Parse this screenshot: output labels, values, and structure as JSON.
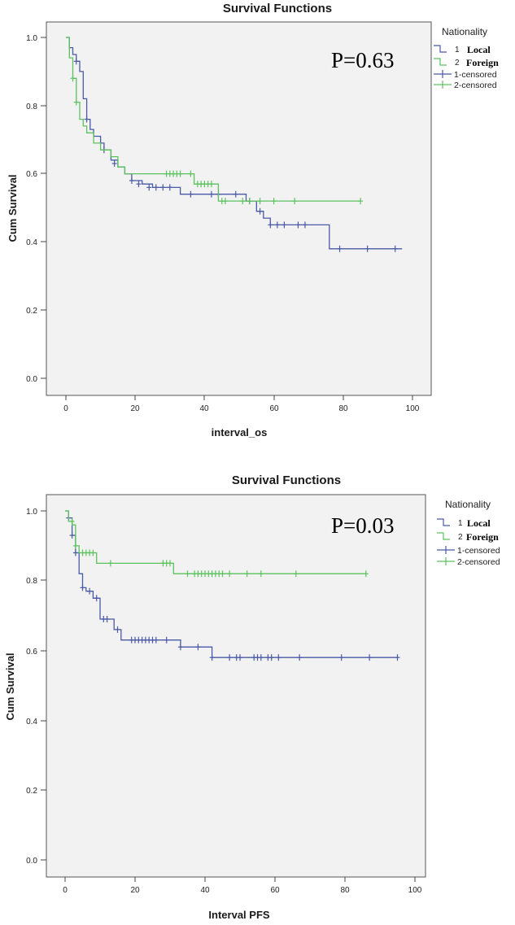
{
  "chart_data": [
    {
      "type": "line",
      "subtype": "kaplan-meier",
      "title": "Survival Functions",
      "xlabel": "interval_os",
      "ylabel": "Cum Survival",
      "xlim": [
        0,
        100
      ],
      "ylim": [
        0,
        1.0
      ],
      "xticks": [
        0,
        20,
        40,
        60,
        80,
        100
      ],
      "yticks": [
        "0.0",
        "0.2",
        "0.4",
        "0.6",
        "0.8",
        "1.0"
      ],
      "p_value_text": "P=0.63",
      "legend": {
        "title": "Nationality",
        "entries": [
          {
            "num": "1",
            "label": "Local"
          },
          {
            "num": "2",
            "label": "Foreign"
          },
          {
            "label": "1-censored"
          },
          {
            "label": "2-censored"
          }
        ]
      },
      "colors": {
        "local": "#4a5aa6",
        "foreign": "#5cc25e"
      },
      "series": [
        {
          "name": "Local",
          "steps": [
            [
              0,
              1.0
            ],
            [
              1,
              0.97
            ],
            [
              2,
              0.95
            ],
            [
              3,
              0.93
            ],
            [
              4,
              0.9
            ],
            [
              5,
              0.82
            ],
            [
              6,
              0.76
            ],
            [
              7,
              0.73
            ],
            [
              8,
              0.71
            ],
            [
              10,
              0.69
            ],
            [
              11,
              0.67
            ],
            [
              13,
              0.64
            ],
            [
              15,
              0.62
            ],
            [
              17,
              0.6
            ],
            [
              19,
              0.58
            ],
            [
              22,
              0.57
            ],
            [
              25,
              0.56
            ],
            [
              33,
              0.54
            ],
            [
              45,
              0.54
            ],
            [
              52,
              0.52
            ],
            [
              55,
              0.49
            ],
            [
              57,
              0.47
            ],
            [
              59,
              0.45
            ],
            [
              66,
              0.45
            ],
            [
              76,
              0.38
            ],
            [
              97,
              0.38
            ]
          ],
          "censored": [
            [
              3,
              0.93
            ],
            [
              6,
              0.76
            ],
            [
              11,
              0.67
            ],
            [
              14,
              0.63
            ],
            [
              19,
              0.58
            ],
            [
              21,
              0.57
            ],
            [
              24,
              0.56
            ],
            [
              26,
              0.56
            ],
            [
              28,
              0.56
            ],
            [
              30,
              0.56
            ],
            [
              36,
              0.54
            ],
            [
              42,
              0.54
            ],
            [
              44,
              0.54
            ],
            [
              49,
              0.54
            ],
            [
              53,
              0.52
            ],
            [
              56,
              0.49
            ],
            [
              59,
              0.45
            ],
            [
              61,
              0.45
            ],
            [
              63,
              0.45
            ],
            [
              67,
              0.45
            ],
            [
              69,
              0.45
            ],
            [
              79,
              0.38
            ],
            [
              87,
              0.38
            ],
            [
              95,
              0.38
            ]
          ]
        },
        {
          "name": "Foreign",
          "steps": [
            [
              0,
              1.0
            ],
            [
              1,
              0.94
            ],
            [
              2,
              0.88
            ],
            [
              3,
              0.81
            ],
            [
              4,
              0.76
            ],
            [
              5,
              0.74
            ],
            [
              6,
              0.72
            ],
            [
              8,
              0.69
            ],
            [
              10,
              0.67
            ],
            [
              13,
              0.65
            ],
            [
              15,
              0.62
            ],
            [
              17,
              0.6
            ],
            [
              36,
              0.6
            ],
            [
              37,
              0.57
            ],
            [
              42,
              0.57
            ],
            [
              44,
              0.52
            ],
            [
              85,
              0.52
            ]
          ],
          "censored": [
            [
              2,
              0.88
            ],
            [
              3,
              0.81
            ],
            [
              29,
              0.6
            ],
            [
              30,
              0.6
            ],
            [
              31,
              0.6
            ],
            [
              32,
              0.6
            ],
            [
              33,
              0.6
            ],
            [
              36,
              0.6
            ],
            [
              38,
              0.57
            ],
            [
              39,
              0.57
            ],
            [
              40,
              0.57
            ],
            [
              41,
              0.57
            ],
            [
              42,
              0.57
            ],
            [
              45,
              0.52
            ],
            [
              46,
              0.52
            ],
            [
              51,
              0.52
            ],
            [
              53,
              0.52
            ],
            [
              56,
              0.52
            ],
            [
              60,
              0.52
            ],
            [
              66,
              0.52
            ],
            [
              85,
              0.52
            ]
          ]
        }
      ]
    },
    {
      "type": "line",
      "subtype": "kaplan-meier",
      "title": "Survival Functions",
      "xlabel": "Interval PFS",
      "ylabel": "Cum Survival",
      "xlim": [
        0,
        100
      ],
      "ylim": [
        0,
        1.0
      ],
      "xticks": [
        0,
        20,
        40,
        60,
        80,
        100
      ],
      "yticks": [
        "0.0",
        "0.2",
        "0.4",
        "0.6",
        "0.8",
        "1.0"
      ],
      "p_value_text": "P=0.03",
      "legend": {
        "title": "Nationality",
        "entries": [
          {
            "num": "1",
            "label": "Local"
          },
          {
            "num": "2",
            "label": "Foreign"
          },
          {
            "label": "1-censored"
          },
          {
            "label": "2-censored"
          }
        ]
      },
      "colors": {
        "local": "#4a5aa6",
        "foreign": "#5cc25e"
      },
      "series": [
        {
          "name": "Local",
          "steps": [
            [
              0,
              1.0
            ],
            [
              1,
              0.98
            ],
            [
              2,
              0.93
            ],
            [
              3,
              0.88
            ],
            [
              4,
              0.82
            ],
            [
              5,
              0.78
            ],
            [
              6,
              0.77
            ],
            [
              8,
              0.75
            ],
            [
              10,
              0.69
            ],
            [
              14,
              0.66
            ],
            [
              16,
              0.63
            ],
            [
              33,
              0.61
            ],
            [
              42,
              0.58
            ],
            [
              95,
              0.58
            ]
          ],
          "censored": [
            [
              1,
              0.98
            ],
            [
              2,
              0.93
            ],
            [
              3,
              0.88
            ],
            [
              5,
              0.78
            ],
            [
              7,
              0.77
            ],
            [
              9,
              0.75
            ],
            [
              11,
              0.69
            ],
            [
              12,
              0.69
            ],
            [
              15,
              0.66
            ],
            [
              19,
              0.63
            ],
            [
              20,
              0.63
            ],
            [
              21,
              0.63
            ],
            [
              22,
              0.63
            ],
            [
              23,
              0.63
            ],
            [
              24,
              0.63
            ],
            [
              25,
              0.63
            ],
            [
              26,
              0.63
            ],
            [
              29,
              0.63
            ],
            [
              33,
              0.61
            ],
            [
              38,
              0.61
            ],
            [
              42,
              0.58
            ],
            [
              47,
              0.58
            ],
            [
              49,
              0.58
            ],
            [
              50,
              0.58
            ],
            [
              54,
              0.58
            ],
            [
              55,
              0.58
            ],
            [
              56,
              0.58
            ],
            [
              58,
              0.58
            ],
            [
              59,
              0.58
            ],
            [
              61,
              0.58
            ],
            [
              67,
              0.58
            ],
            [
              79,
              0.58
            ],
            [
              87,
              0.58
            ],
            [
              95,
              0.58
            ]
          ]
        },
        {
          "name": "Foreign",
          "steps": [
            [
              0,
              1.0
            ],
            [
              1,
              0.97
            ],
            [
              2,
              0.96
            ],
            [
              3,
              0.9
            ],
            [
              4,
              0.88
            ],
            [
              9,
              0.85
            ],
            [
              31,
              0.82
            ],
            [
              86,
              0.82
            ]
          ],
          "censored": [
            [
              2,
              0.97
            ],
            [
              3,
              0.9
            ],
            [
              5,
              0.88
            ],
            [
              6,
              0.88
            ],
            [
              7,
              0.88
            ],
            [
              8,
              0.88
            ],
            [
              13,
              0.85
            ],
            [
              28,
              0.85
            ],
            [
              29,
              0.85
            ],
            [
              30,
              0.85
            ],
            [
              35,
              0.82
            ],
            [
              37,
              0.82
            ],
            [
              38,
              0.82
            ],
            [
              39,
              0.82
            ],
            [
              40,
              0.82
            ],
            [
              41,
              0.82
            ],
            [
              42,
              0.82
            ],
            [
              43,
              0.82
            ],
            [
              44,
              0.82
            ],
            [
              45,
              0.82
            ],
            [
              47,
              0.82
            ],
            [
              52,
              0.82
            ],
            [
              56,
              0.82
            ],
            [
              66,
              0.82
            ],
            [
              86,
              0.82
            ]
          ]
        }
      ]
    }
  ]
}
